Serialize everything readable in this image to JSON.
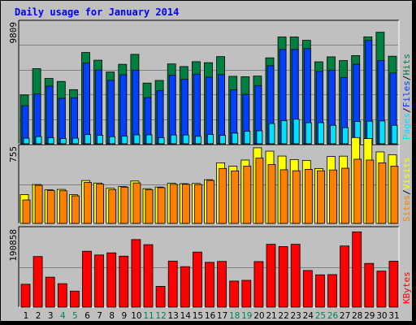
{
  "title": "Daily usage for January 2014",
  "colors": {
    "hits": "#008040",
    "files": "#0040ff",
    "pages": "#00e0ff",
    "visits": "#ffff00",
    "sites": "#ff8000",
    "kbytes": "#ff0000",
    "title": "#0000ff",
    "weekday": "#000000",
    "weekend": "#00805c"
  },
  "chart_data": [
    {
      "type": "bar",
      "panel": "top",
      "ymax_label": "9809",
      "ymax": 9809,
      "legend": [
        "Pages",
        "Files",
        "Hits"
      ],
      "categories": [
        "1",
        "2",
        "3",
        "4",
        "5",
        "6",
        "7",
        "8",
        "9",
        "10",
        "11",
        "12",
        "13",
        "14",
        "15",
        "16",
        "17",
        "18",
        "19",
        "20",
        "21",
        "22",
        "23",
        "24",
        "25",
        "26",
        "27",
        "28",
        "29",
        "30",
        "31"
      ],
      "series": [
        {
          "name": "Hits",
          "values": [
            3930,
            6050,
            5260,
            5020,
            4360,
            7350,
            6730,
            5780,
            6400,
            7200,
            4890,
            5100,
            6430,
            6220,
            6610,
            6530,
            7020,
            5430,
            5400,
            5450,
            6920,
            8600,
            8600,
            8330,
            6600,
            7000,
            6700,
            7100,
            8610,
            8980,
            7050
          ]
        },
        {
          "name": "Files",
          "values": [
            3070,
            4020,
            4640,
            3660,
            3710,
            6500,
            5940,
            5110,
            5560,
            5930,
            3720,
            4270,
            5520,
            5190,
            5610,
            5360,
            5570,
            4340,
            3980,
            4690,
            6280,
            7600,
            7600,
            7660,
            5830,
            5930,
            5340,
            6400,
            8320,
            6700,
            5700
          ]
        },
        {
          "name": "Pages",
          "values": [
            450,
            580,
            480,
            420,
            450,
            740,
            680,
            570,
            610,
            720,
            720,
            490,
            710,
            710,
            600,
            760,
            680,
            860,
            1010,
            1050,
            1630,
            1860,
            1980,
            1700,
            1700,
            1490,
            1300,
            1800,
            1820,
            1840,
            1490
          ]
        }
      ]
    },
    {
      "type": "bar",
      "panel": "middle",
      "ymax_label": "755",
      "ymax": 755,
      "legend": [
        "Sites",
        "Visits"
      ],
      "categories": [
        "1",
        "2",
        "3",
        "4",
        "5",
        "6",
        "7",
        "8",
        "9",
        "10",
        "11",
        "12",
        "13",
        "14",
        "15",
        "16",
        "17",
        "18",
        "19",
        "20",
        "21",
        "22",
        "23",
        "24",
        "25",
        "26",
        "27",
        "28",
        "29",
        "30",
        "31"
      ],
      "series": [
        {
          "name": "Visits",
          "values": [
            282,
            381,
            330,
            333,
            281,
            420,
            395,
            344,
            361,
            415,
            340,
            356,
            393,
            389,
            391,
            428,
            593,
            560,
            620,
            740,
            707,
            659,
            625,
            616,
            537,
            655,
            658,
            840,
            830,
            700,
            672
          ]
        },
        {
          "name": "Sites",
          "values": [
            230,
            373,
            322,
            320,
            270,
            401,
            384,
            331,
            355,
            396,
            330,
            350,
            382,
            383,
            380,
            421,
            538,
            514,
            560,
            639,
            576,
            525,
            515,
            529,
            515,
            523,
            540,
            628,
            620,
            593,
            560
          ]
        }
      ]
    },
    {
      "type": "bar",
      "panel": "bottom",
      "ymax_label": "190858",
      "ymax": 190858,
      "legend": [
        "KBytes"
      ],
      "categories": [
        "1",
        "2",
        "3",
        "4",
        "5",
        "6",
        "7",
        "8",
        "9",
        "10",
        "11",
        "12",
        "13",
        "14",
        "15",
        "16",
        "17",
        "18",
        "19",
        "20",
        "21",
        "22",
        "23",
        "24",
        "25",
        "26",
        "27",
        "28",
        "29",
        "30",
        "31"
      ],
      "series": [
        {
          "name": "KBytes",
          "values": [
            55400,
            122600,
            72600,
            56800,
            38800,
            135300,
            126300,
            131400,
            123400,
            163600,
            151300,
            50400,
            111500,
            98000,
            133400,
            108500,
            110700,
            63100,
            64900,
            110300,
            152200,
            146700,
            152200,
            88700,
            78300,
            78800,
            148100,
            182300,
            105900,
            87200,
            111200
          ]
        }
      ]
    }
  ]
}
